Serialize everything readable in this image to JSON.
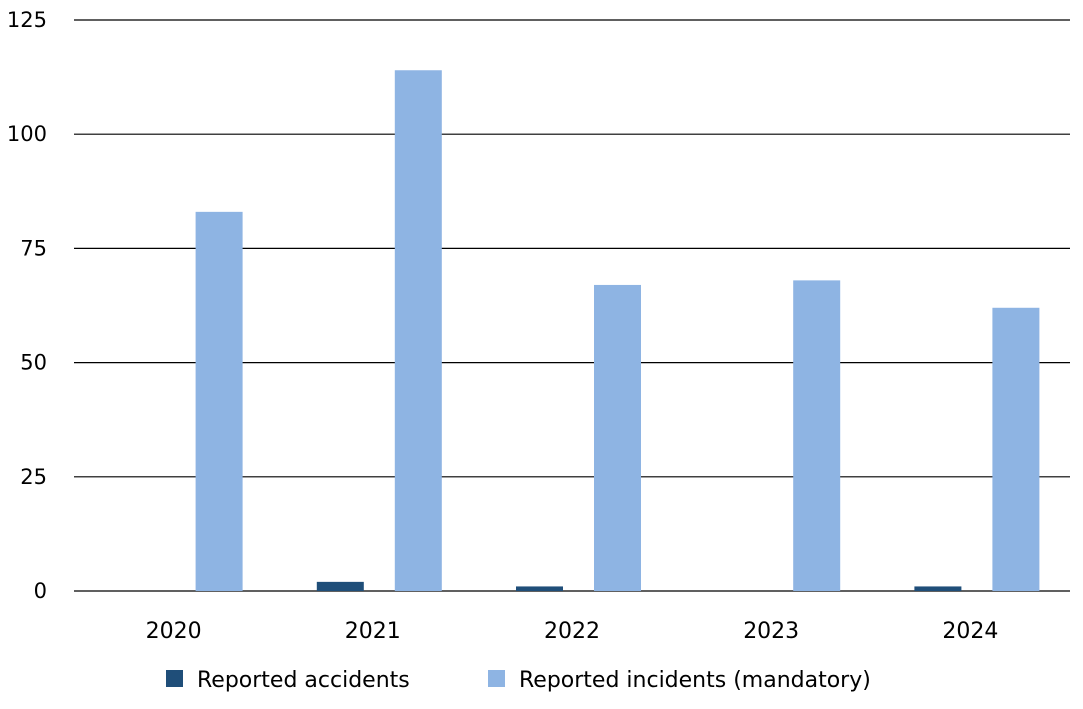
{
  "chart_data": {
    "type": "bar",
    "title": "",
    "xlabel": "",
    "ylabel": "",
    "categories": [
      "2020",
      "2021",
      "2022",
      "2023",
      "2024"
    ],
    "series": [
      {
        "name": "Reported accidents",
        "color": "#1f4e79",
        "values": [
          0,
          2,
          1,
          0,
          1
        ]
      },
      {
        "name": "Reported incidents (mandatory)",
        "color": "#8eb4e3",
        "values": [
          83,
          114,
          67,
          68,
          62
        ]
      }
    ],
    "ylim": [
      0,
      125
    ],
    "yticks": [
      "0",
      "25",
      "50",
      "75",
      "100",
      "125"
    ],
    "grid": true,
    "legend_position": "bottom"
  }
}
